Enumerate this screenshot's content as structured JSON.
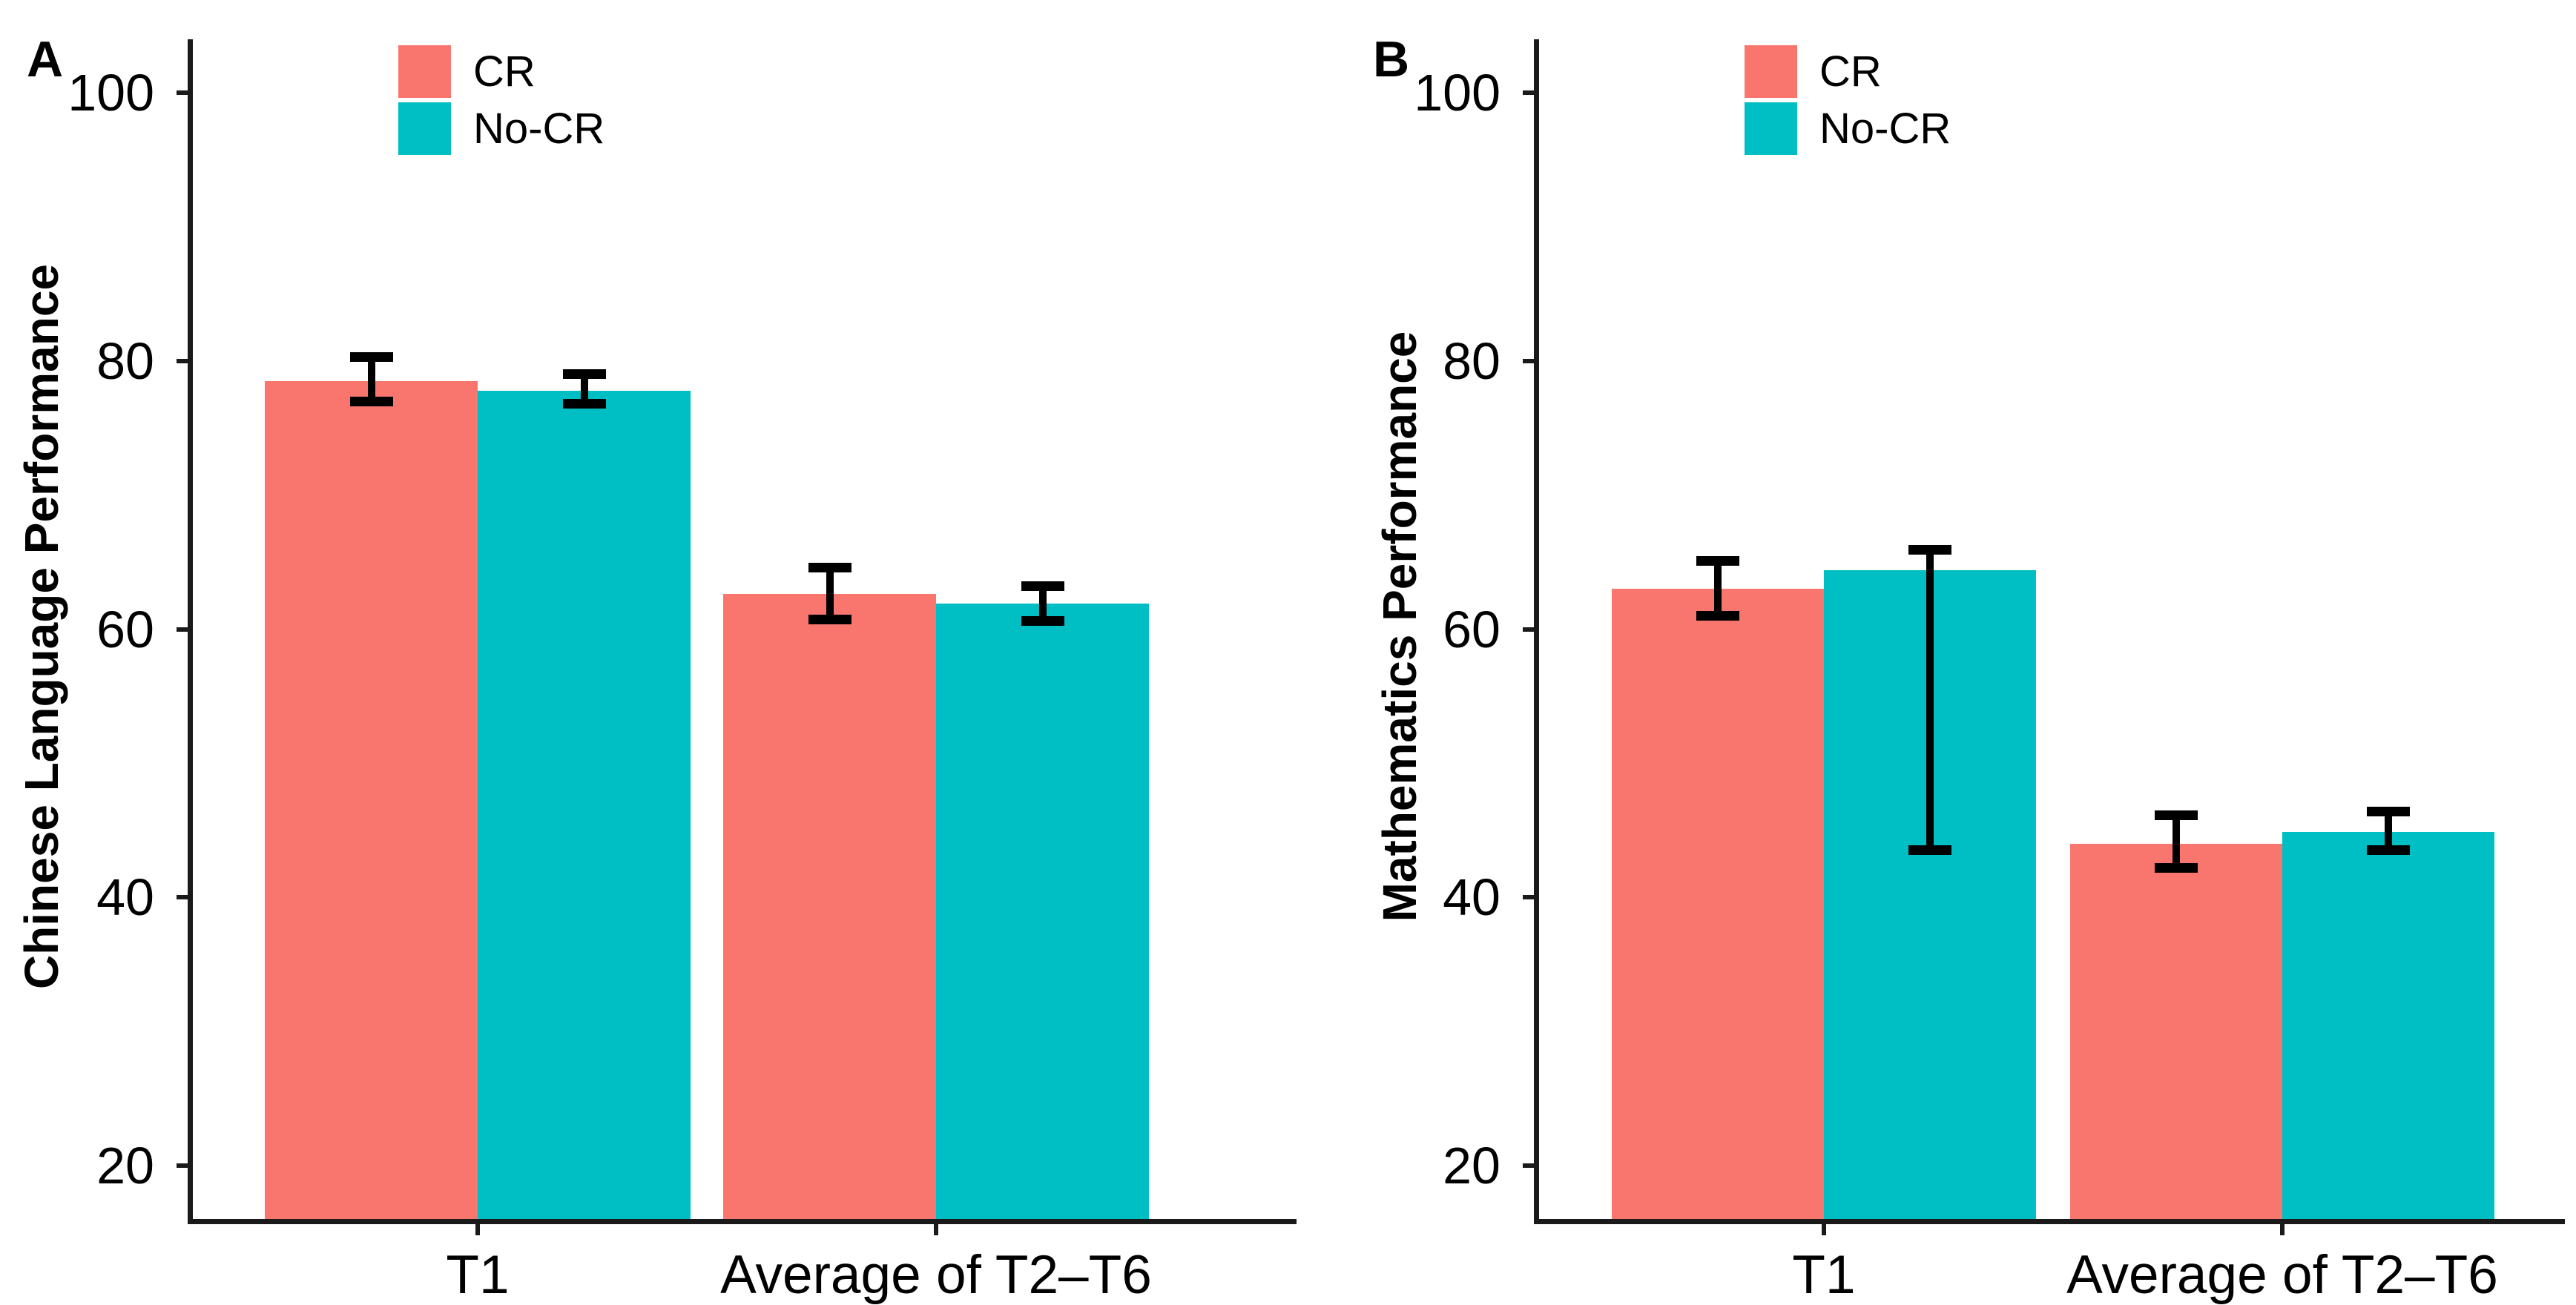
{
  "figure": {
    "background": "#ffffff",
    "axis_color": "#1a1a1a",
    "panel_labels": [
      "A",
      "B"
    ]
  },
  "chart_data": [
    {
      "type": "bar",
      "panel_label": "A",
      "title": "",
      "xlabel": "",
      "ylabel": "Chinese Language Performance",
      "categories": [
        "T1",
        "Average of T2–T6"
      ],
      "series": [
        {
          "name": "CR",
          "color": "#F8766D",
          "values": [
            78.5,
            62.6
          ],
          "error_low": [
            77.0,
            60.7
          ],
          "error_high": [
            80.3,
            64.6
          ]
        },
        {
          "name": "No-CR",
          "color": "#00BFC4",
          "values": [
            77.8,
            61.9
          ],
          "error_low": [
            76.8,
            60.6
          ],
          "error_high": [
            79.0,
            63.2
          ]
        }
      ],
      "yticks": [
        20,
        40,
        60,
        80,
        100
      ],
      "ylim": [
        16,
        104
      ],
      "grid": false,
      "error_bars": true,
      "legend_position": "top-inside-left"
    },
    {
      "type": "bar",
      "panel_label": "B",
      "title": "",
      "xlabel": "",
      "ylabel": "Mathematics Performance",
      "categories": [
        "T1",
        "Average of T2–T6"
      ],
      "series": [
        {
          "name": "CR",
          "color": "#F8766D",
          "values": [
            63.0,
            44.0
          ],
          "error_low": [
            61.0,
            42.2
          ],
          "error_high": [
            65.1,
            46.1
          ]
        },
        {
          "name": "No-CR",
          "color": "#00BFC4",
          "values": [
            64.4,
            44.9
          ],
          "error_low": [
            43.5,
            43.5
          ],
          "error_high": [
            65.9,
            46.4
          ]
        }
      ],
      "yticks": [
        20,
        40,
        60,
        80,
        100
      ],
      "ylim": [
        16,
        104
      ],
      "grid": false,
      "error_bars": true,
      "legend_position": "top-inside-left"
    }
  ]
}
